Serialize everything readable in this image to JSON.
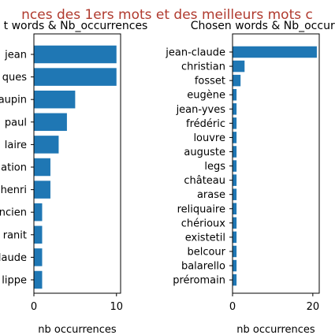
{
  "figure": {
    "suptitle": "nces des 1ers mots et des meilleurs mots c",
    "suptitle_color": "#b03a2e"
  },
  "bar_color": "#1f77b4",
  "chart_data": [
    {
      "type": "bar",
      "orientation": "horizontal",
      "title": "t words & Nb_occurrences",
      "xlabel": "nb  occurrences",
      "categories": [
        "jean",
        "ques",
        "aupin",
        "paul",
        "laire",
        "ation",
        "henri",
        "ncien",
        "ranit",
        "laude",
        "lippe"
      ],
      "values": [
        10,
        10,
        5,
        4,
        3,
        2,
        2,
        1,
        1,
        1,
        1
      ],
      "xlim": [
        0,
        10.5
      ],
      "xticks": [
        0,
        10
      ],
      "grid": false
    },
    {
      "type": "bar",
      "orientation": "horizontal",
      "title": "Chosen words & Nb_occurr",
      "xlabel": "nb  occurrences",
      "categories": [
        "jean-claude",
        "christian",
        "fosset",
        "eugène",
        "jean-yves",
        "frédéric",
        "louvre",
        "auguste",
        "legs",
        "château",
        "arase",
        "reliquaire",
        "chérioux",
        "existetil",
        "belcour",
        "balarello",
        "préromain"
      ],
      "values": [
        21,
        3,
        2,
        1,
        1,
        1,
        1,
        1,
        1,
        1,
        1,
        1,
        1,
        1,
        1,
        1,
        1
      ],
      "xlim": [
        0,
        21.6
      ],
      "xticks": [
        0,
        20
      ],
      "grid": false
    }
  ]
}
